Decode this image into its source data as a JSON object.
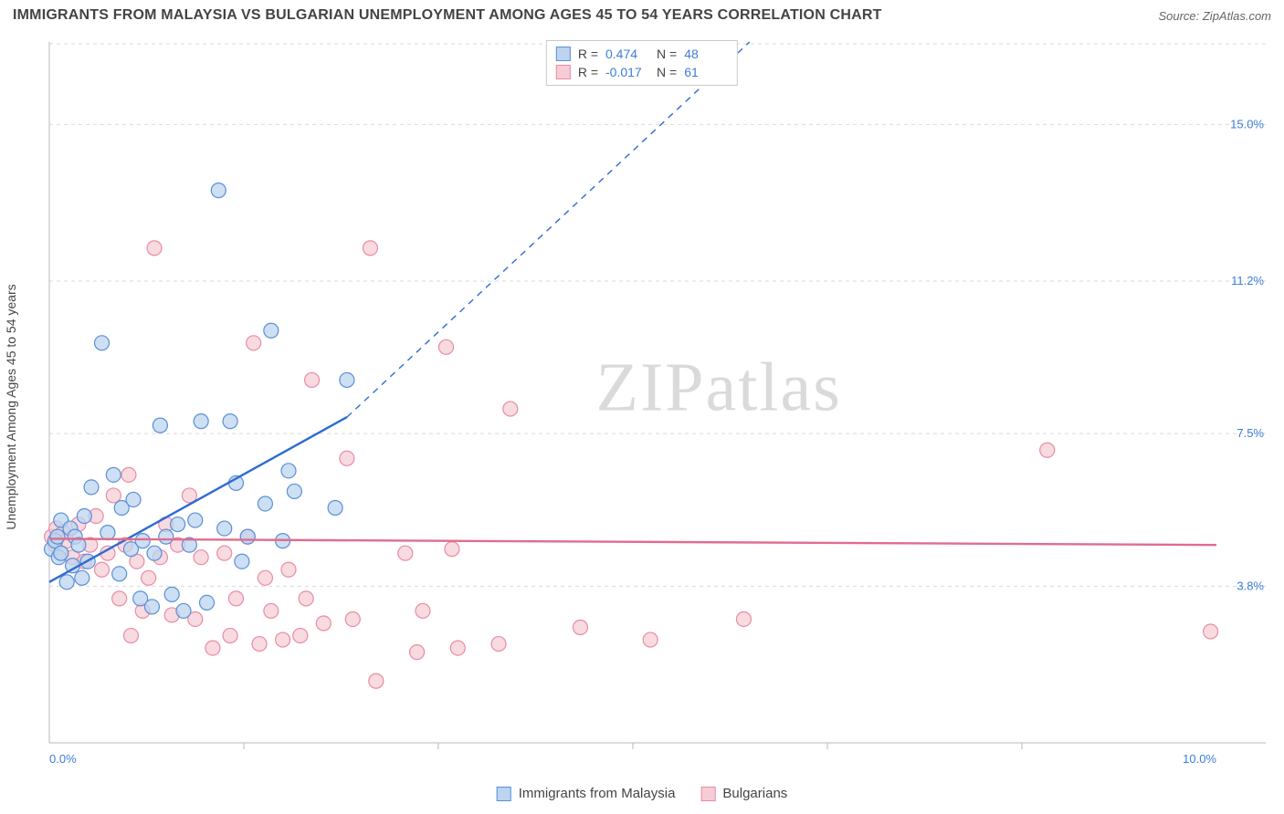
{
  "title": "IMMIGRANTS FROM MALAYSIA VS BULGARIAN UNEMPLOYMENT AMONG AGES 45 TO 54 YEARS CORRELATION CHART",
  "source": "Source: ZipAtlas.com",
  "y_axis_label": "Unemployment Among Ages 45 to 54 years",
  "watermark": "ZIPatlas",
  "chart": {
    "type": "scatter",
    "background_color": "#ffffff",
    "grid_color": "#d9d9d9",
    "axis_color": "#b8b8b8",
    "tick_color": "#3b7dd8",
    "marker_radius": 8,
    "marker_stroke_width": 1.2,
    "xlim": [
      0,
      10
    ],
    "ylim": [
      0,
      17
    ],
    "x_ticks": [
      0.0,
      10.0
    ],
    "x_tick_labels": [
      "0.0%",
      "10.0%"
    ],
    "x_minor_ticks": [
      1.667,
      3.333,
      5.0,
      6.667,
      8.333
    ],
    "y_ticks": [
      3.8,
      7.5,
      11.2,
      15.0
    ],
    "y_tick_labels": [
      "3.8%",
      "7.5%",
      "11.2%",
      "15.0%"
    ],
    "series": [
      {
        "id": "malaysia",
        "label": "Immigrants from Malaysia",
        "fill": "#bcd4ef",
        "stroke": "#5a8fd6",
        "line_color": "#2e6bd0",
        "R": "0.474",
        "N": "48",
        "trend": {
          "x1": 0.0,
          "y1": 3.9,
          "x2": 2.55,
          "y2": 7.9,
          "dash_to_x": 6.0,
          "dash_to_y": 17.0,
          "width": 2.4
        },
        "points": [
          [
            0.02,
            4.7
          ],
          [
            0.05,
            4.9
          ],
          [
            0.07,
            5.0
          ],
          [
            0.08,
            4.5
          ],
          [
            0.1,
            4.6
          ],
          [
            0.1,
            5.4
          ],
          [
            0.15,
            3.9
          ],
          [
            0.18,
            5.2
          ],
          [
            0.2,
            4.3
          ],
          [
            0.22,
            5.0
          ],
          [
            0.25,
            4.8
          ],
          [
            0.28,
            4.0
          ],
          [
            0.3,
            5.5
          ],
          [
            0.33,
            4.4
          ],
          [
            0.36,
            6.2
          ],
          [
            0.45,
            9.7
          ],
          [
            0.5,
            5.1
          ],
          [
            0.55,
            6.5
          ],
          [
            0.6,
            4.1
          ],
          [
            0.62,
            5.7
          ],
          [
            0.7,
            4.7
          ],
          [
            0.72,
            5.9
          ],
          [
            0.78,
            3.5
          ],
          [
            0.8,
            4.9
          ],
          [
            0.88,
            3.3
          ],
          [
            0.9,
            4.6
          ],
          [
            0.95,
            7.7
          ],
          [
            1.0,
            5.0
          ],
          [
            1.05,
            3.6
          ],
          [
            1.1,
            5.3
          ],
          [
            1.15,
            3.2
          ],
          [
            1.2,
            4.8
          ],
          [
            1.25,
            5.4
          ],
          [
            1.3,
            7.8
          ],
          [
            1.35,
            3.4
          ],
          [
            1.45,
            13.4
          ],
          [
            1.5,
            5.2
          ],
          [
            1.55,
            7.8
          ],
          [
            1.6,
            6.3
          ],
          [
            1.65,
            4.4
          ],
          [
            1.7,
            5.0
          ],
          [
            1.85,
            5.8
          ],
          [
            1.9,
            10.0
          ],
          [
            2.0,
            4.9
          ],
          [
            2.05,
            6.6
          ],
          [
            2.1,
            6.1
          ],
          [
            2.45,
            5.7
          ],
          [
            2.55,
            8.8
          ]
        ]
      },
      {
        "id": "bulgarians",
        "label": "Bulgarians",
        "fill": "#f6cdd7",
        "stroke": "#e98ba3",
        "line_color": "#e16c8e",
        "R": "-0.017",
        "N": "61",
        "trend": {
          "x1": 0.0,
          "y1": 4.95,
          "x2": 10.0,
          "y2": 4.8,
          "width": 2.4
        },
        "points": [
          [
            0.02,
            5.0
          ],
          [
            0.05,
            4.8
          ],
          [
            0.06,
            5.2
          ],
          [
            0.1,
            4.6
          ],
          [
            0.12,
            5.1
          ],
          [
            0.15,
            4.9
          ],
          [
            0.2,
            4.5
          ],
          [
            0.25,
            5.3
          ],
          [
            0.3,
            4.4
          ],
          [
            0.35,
            4.8
          ],
          [
            0.4,
            5.5
          ],
          [
            0.45,
            4.2
          ],
          [
            0.5,
            4.6
          ],
          [
            0.55,
            6.0
          ],
          [
            0.6,
            3.5
          ],
          [
            0.65,
            4.8
          ],
          [
            0.68,
            6.5
          ],
          [
            0.7,
            2.6
          ],
          [
            0.75,
            4.4
          ],
          [
            0.8,
            3.2
          ],
          [
            0.85,
            4.0
          ],
          [
            0.9,
            12.0
          ],
          [
            0.95,
            4.5
          ],
          [
            1.0,
            5.3
          ],
          [
            1.05,
            3.1
          ],
          [
            1.1,
            4.8
          ],
          [
            1.2,
            6.0
          ],
          [
            1.25,
            3.0
          ],
          [
            1.3,
            4.5
          ],
          [
            1.4,
            2.3
          ],
          [
            1.5,
            4.6
          ],
          [
            1.55,
            2.6
          ],
          [
            1.6,
            3.5
          ],
          [
            1.7,
            5.0
          ],
          [
            1.75,
            9.7
          ],
          [
            1.8,
            2.4
          ],
          [
            1.85,
            4.0
          ],
          [
            1.9,
            3.2
          ],
          [
            2.0,
            2.5
          ],
          [
            2.05,
            4.2
          ],
          [
            2.15,
            2.6
          ],
          [
            2.2,
            3.5
          ],
          [
            2.25,
            8.8
          ],
          [
            2.35,
            2.9
          ],
          [
            2.55,
            6.9
          ],
          [
            2.6,
            3.0
          ],
          [
            2.75,
            12.0
          ],
          [
            2.8,
            1.5
          ],
          [
            3.05,
            4.6
          ],
          [
            3.15,
            2.2
          ],
          [
            3.2,
            3.2
          ],
          [
            3.4,
            9.6
          ],
          [
            3.45,
            4.7
          ],
          [
            3.5,
            2.3
          ],
          [
            3.85,
            2.4
          ],
          [
            3.95,
            8.1
          ],
          [
            4.55,
            2.8
          ],
          [
            5.15,
            2.5
          ],
          [
            5.95,
            3.0
          ],
          [
            8.55,
            7.1
          ],
          [
            9.95,
            2.7
          ]
        ]
      }
    ]
  },
  "legend_top": {
    "rows": [
      {
        "series": "malaysia",
        "r_label": "R =",
        "n_label": "N ="
      },
      {
        "series": "bulgarians",
        "r_label": "R =",
        "n_label": "N ="
      }
    ]
  }
}
